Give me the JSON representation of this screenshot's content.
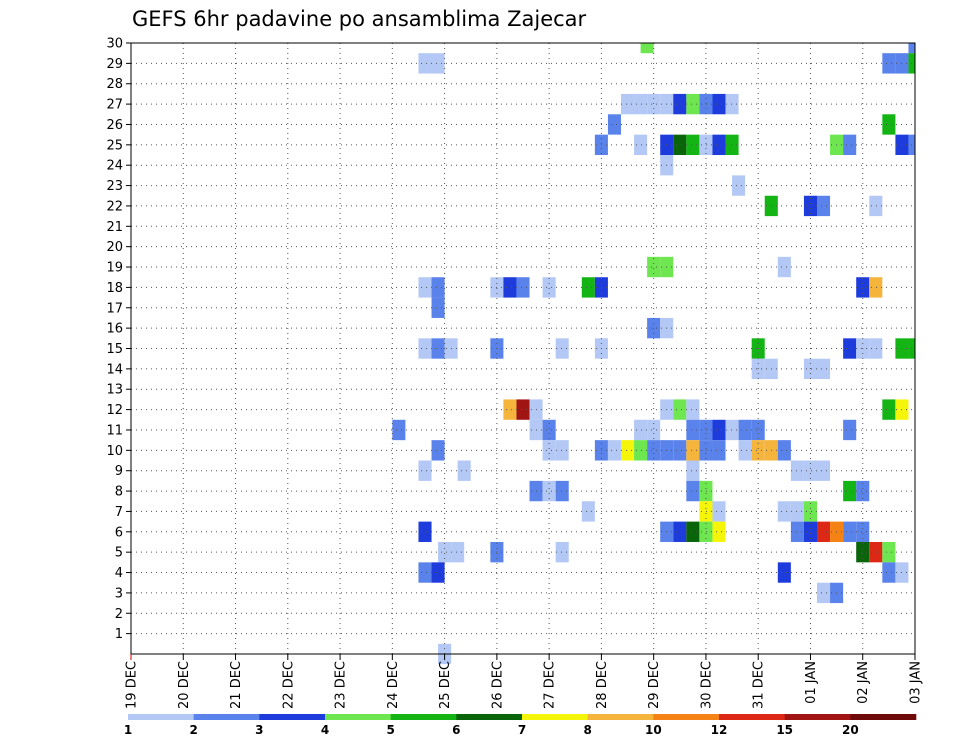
{
  "chart_data": {
    "type": "heatmap",
    "title": "GEFS 6hr padavine po ansamblima Zajecar",
    "xlabel": "",
    "ylabel": "",
    "x_tick_labels": [
      "19 DEC",
      "20 DEC",
      "21 DEC",
      "22 DEC",
      "23 DEC",
      "24 DEC",
      "25 DEC",
      "26 DEC",
      "27 DEC",
      "28 DEC",
      "29 DEC",
      "30 DEC",
      "31 DEC",
      "01 JAN",
      "02 JAN",
      "03 JAN"
    ],
    "x_unit": "6-hour step",
    "xlim": [
      0,
      60
    ],
    "ylim": [
      0,
      30
    ],
    "y_ticks": [
      1,
      2,
      3,
      4,
      5,
      6,
      7,
      8,
      9,
      10,
      11,
      12,
      13,
      14,
      15,
      16,
      17,
      18,
      19,
      20,
      21,
      22,
      23,
      24,
      25,
      26,
      27,
      28,
      29,
      30
    ],
    "grid": true,
    "colorbar": {
      "tick_labels": [
        "1",
        "2",
        "3",
        "4",
        "5",
        "6",
        "7",
        "8",
        "10",
        "12",
        "15",
        "20"
      ],
      "colors": [
        "#b4c8f5",
        "#5a82eb",
        "#1e3cdc",
        "#6ee650",
        "#14b414",
        "#0a640a",
        "#f5f50a",
        "#f5b43c",
        "#f58214",
        "#dc2814",
        "#a01414",
        "#6e0a0a"
      ]
    },
    "cells": [
      [
        60,
        30,
        2
      ],
      [
        39.5,
        30,
        4
      ],
      [
        22.5,
        29,
        1
      ],
      [
        23.5,
        29,
        1
      ],
      [
        58,
        29,
        2
      ],
      [
        59,
        29,
        2
      ],
      [
        60,
        29,
        5
      ],
      [
        38,
        27,
        1
      ],
      [
        39,
        27,
        1
      ],
      [
        40,
        27,
        1
      ],
      [
        41,
        27,
        1
      ],
      [
        42,
        27,
        3
      ],
      [
        43,
        27,
        4
      ],
      [
        44,
        27,
        2
      ],
      [
        45,
        27,
        3
      ],
      [
        46,
        27,
        1
      ],
      [
        37,
        26,
        2
      ],
      [
        58,
        26,
        5
      ],
      [
        36,
        25,
        2
      ],
      [
        39,
        25,
        1
      ],
      [
        41,
        25,
        3
      ],
      [
        42,
        25,
        6
      ],
      [
        43,
        25,
        5
      ],
      [
        44,
        25,
        1
      ],
      [
        45,
        25,
        3
      ],
      [
        46,
        25,
        5
      ],
      [
        54,
        25,
        4
      ],
      [
        55,
        25,
        2
      ],
      [
        59,
        25,
        3
      ],
      [
        60,
        25,
        2
      ],
      [
        41,
        24,
        1
      ],
      [
        46.5,
        23,
        1
      ],
      [
        49,
        22,
        5
      ],
      [
        52,
        22,
        3
      ],
      [
        53,
        22,
        2
      ],
      [
        57,
        22,
        1
      ],
      [
        40,
        19,
        4
      ],
      [
        41,
        19,
        4
      ],
      [
        50,
        19,
        1
      ],
      [
        22.5,
        18,
        1
      ],
      [
        23.5,
        18,
        2
      ],
      [
        28,
        18,
        1
      ],
      [
        29,
        18,
        3
      ],
      [
        30,
        18,
        2
      ],
      [
        32,
        18,
        1
      ],
      [
        35,
        18,
        5
      ],
      [
        36,
        18,
        3
      ],
      [
        56,
        18,
        3
      ],
      [
        57,
        18,
        8
      ],
      [
        23.5,
        17,
        2
      ],
      [
        40,
        16,
        2
      ],
      [
        41,
        16,
        1
      ],
      [
        22.5,
        15,
        1
      ],
      [
        23.5,
        15,
        2
      ],
      [
        24.5,
        15,
        1
      ],
      [
        28,
        15,
        2
      ],
      [
        33,
        15,
        1
      ],
      [
        36,
        15,
        1
      ],
      [
        48,
        15,
        5
      ],
      [
        55,
        15,
        3
      ],
      [
        56,
        15,
        1
      ],
      [
        57,
        15,
        1
      ],
      [
        59,
        15,
        5
      ],
      [
        60,
        15,
        5
      ],
      [
        48,
        14,
        1
      ],
      [
        49,
        14,
        1
      ],
      [
        52,
        14,
        1
      ],
      [
        53,
        14,
        1
      ],
      [
        29,
        12,
        8
      ],
      [
        30,
        12,
        11
      ],
      [
        31,
        12,
        1
      ],
      [
        41,
        12,
        1
      ],
      [
        42,
        12,
        4
      ],
      [
        43,
        12,
        1
      ],
      [
        58,
        12,
        5
      ],
      [
        59,
        12,
        7
      ],
      [
        20.5,
        11,
        2
      ],
      [
        31,
        11,
        1
      ],
      [
        32,
        11,
        2
      ],
      [
        39,
        11,
        1
      ],
      [
        40,
        11,
        1
      ],
      [
        43,
        11,
        2
      ],
      [
        44,
        11,
        2
      ],
      [
        45,
        11,
        3
      ],
      [
        46,
        11,
        1
      ],
      [
        47,
        11,
        2
      ],
      [
        48,
        11,
        2
      ],
      [
        55,
        11,
        2
      ],
      [
        23.5,
        10,
        2
      ],
      [
        32,
        10,
        1
      ],
      [
        33,
        10,
        1
      ],
      [
        36,
        10,
        2
      ],
      [
        37,
        10,
        1
      ],
      [
        38,
        10,
        7
      ],
      [
        39,
        10,
        4
      ],
      [
        40,
        10,
        2
      ],
      [
        41,
        10,
        2
      ],
      [
        42,
        10,
        2
      ],
      [
        43,
        10,
        8
      ],
      [
        44,
        10,
        2
      ],
      [
        45,
        10,
        2
      ],
      [
        47,
        10,
        1
      ],
      [
        48,
        10,
        8
      ],
      [
        49,
        10,
        8
      ],
      [
        50,
        10,
        2
      ],
      [
        22.5,
        9,
        1
      ],
      [
        25.5,
        9,
        1
      ],
      [
        43,
        9,
        1
      ],
      [
        51,
        9,
        1
      ],
      [
        52,
        9,
        1
      ],
      [
        53,
        9,
        1
      ],
      [
        31,
        8,
        2
      ],
      [
        32,
        8,
        1
      ],
      [
        33,
        8,
        2
      ],
      [
        43,
        8,
        2
      ],
      [
        44,
        8,
        4
      ],
      [
        55,
        8,
        5
      ],
      [
        56,
        8,
        2
      ],
      [
        35,
        7,
        1
      ],
      [
        44,
        7,
        7
      ],
      [
        45,
        7,
        1
      ],
      [
        50,
        7,
        1
      ],
      [
        51,
        7,
        1
      ],
      [
        52,
        7,
        4
      ],
      [
        22.5,
        6,
        3
      ],
      [
        41,
        6,
        2
      ],
      [
        42,
        6,
        3
      ],
      [
        43,
        6,
        6
      ],
      [
        44,
        6,
        4
      ],
      [
        45,
        6,
        7
      ],
      [
        51,
        6,
        2
      ],
      [
        52,
        6,
        3
      ],
      [
        53,
        6,
        10
      ],
      [
        54,
        6,
        9
      ],
      [
        55,
        6,
        2
      ],
      [
        56,
        6,
        2
      ],
      [
        24,
        5,
        1
      ],
      [
        25,
        5,
        1
      ],
      [
        28,
        5,
        2
      ],
      [
        33,
        5,
        1
      ],
      [
        56,
        5,
        6
      ],
      [
        57,
        5,
        10
      ],
      [
        58,
        5,
        4
      ],
      [
        22.5,
        4,
        2
      ],
      [
        23.5,
        4,
        3
      ],
      [
        50,
        4,
        3
      ],
      [
        58,
        4,
        2
      ],
      [
        59,
        4,
        1
      ],
      [
        53,
        3,
        1
      ],
      [
        54,
        3,
        2
      ],
      [
        24,
        0,
        1
      ]
    ]
  }
}
